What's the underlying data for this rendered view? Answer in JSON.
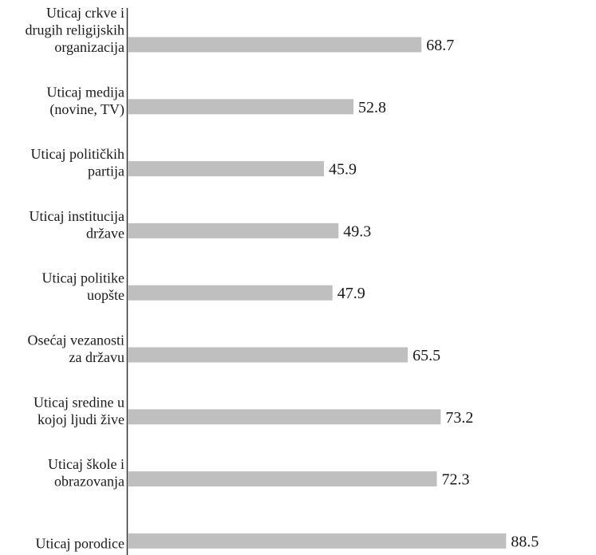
{
  "chart_data": {
    "type": "bar",
    "orientation": "horizontal",
    "title": "",
    "xlabel": "",
    "ylabel": "",
    "xlim": [
      0,
      100
    ],
    "grid": false,
    "bar_color": "#bfbfbf",
    "axis_color": "#333333",
    "categories": [
      [
        "Uticaj crkve i",
        "drugih religijskih",
        "organizacija"
      ],
      [
        "Uticaj medija",
        "(novine, TV)"
      ],
      [
        "Uticaj političkih",
        "partija"
      ],
      [
        "Uticaj institucija",
        "države"
      ],
      [
        "Uticaj politike",
        "uopšte"
      ],
      [
        "Osećaj vezanosti",
        "za državu"
      ],
      [
        "Uticaj sredine u",
        "kojoj ljudi žive"
      ],
      [
        "Uticaj škole i",
        "obrazovanja"
      ],
      [
        "Uticaj porodice"
      ]
    ],
    "values": [
      68.7,
      52.8,
      45.9,
      49.3,
      47.9,
      65.5,
      73.2,
      72.3,
      88.5
    ],
    "value_labels": [
      "68.7",
      "52.8",
      "45.9",
      "49.3",
      "47.9",
      "65.5",
      "73.2",
      "72.3",
      "88.5"
    ]
  }
}
